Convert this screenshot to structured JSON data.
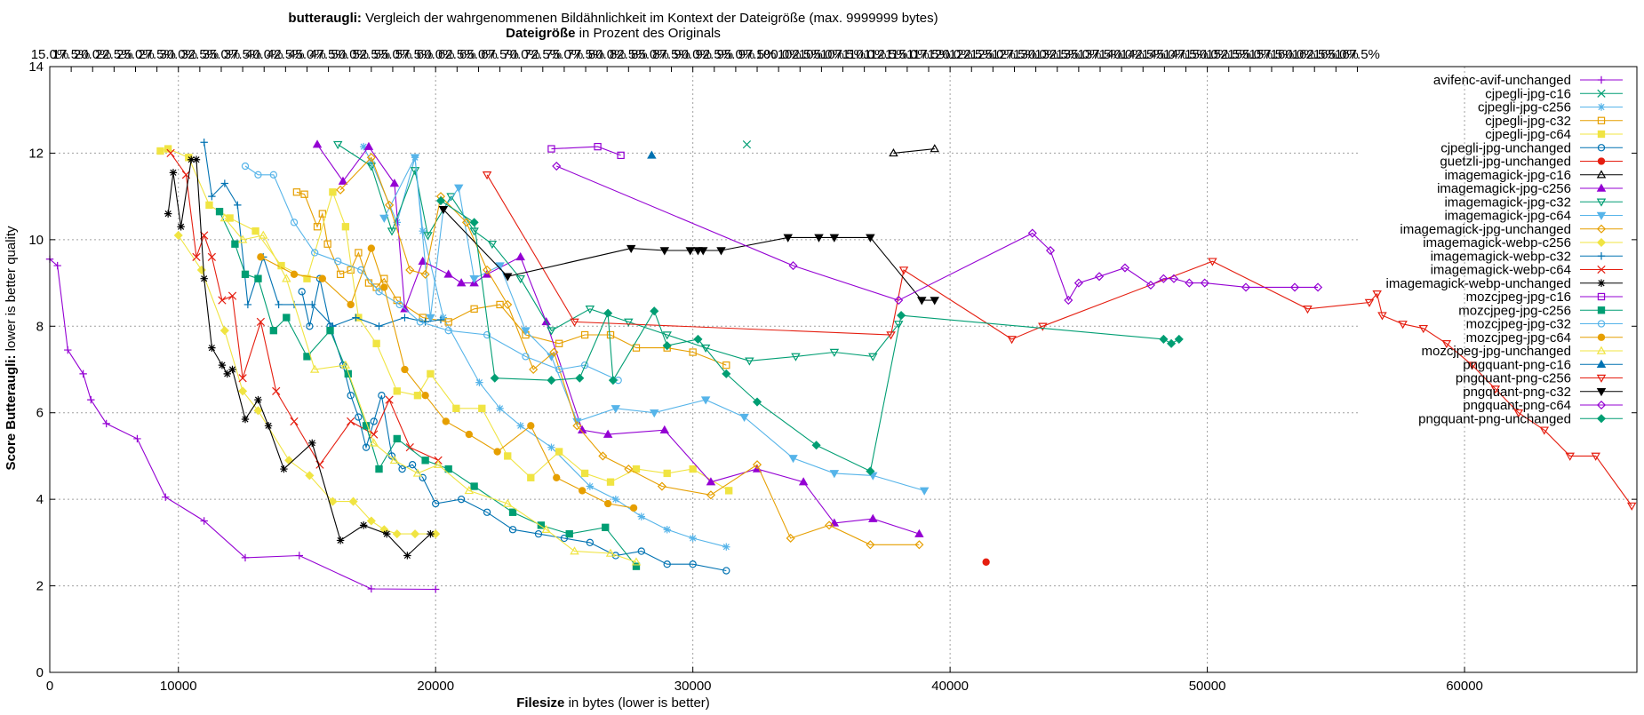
{
  "chart_data": {
    "type": "line",
    "title_bold": "butteraugli:",
    "title_rest": " Vergleich der wahrgenommenen Bildähnlichkeit im Kontext der Dateigröße (max. 9999999 bytes)",
    "x2title_bold": "Dateigröße",
    "x2title_rest": " in Prozent des Originals",
    "xlabel_bold": "Filesize",
    "xlabel_rest": " in bytes (lower is better)",
    "ylabel_bold": "Score Butteraugli:",
    "ylabel_rest": " lower is better quality",
    "xlim": [
      5000,
      66700
    ],
    "ylim": [
      0,
      14
    ],
    "xticks": [
      10000,
      20000,
      30000,
      40000,
      50000,
      60000
    ],
    "yticks": [
      0,
      2,
      4,
      6,
      8,
      10,
      12,
      14
    ],
    "x2_start": 15.0,
    "x2_step": 2.5,
    "x2_count": 62,
    "x2_per_unit": 0.003,
    "grid": true,
    "legend_position": "top-right",
    "series": [
      {
        "name": "avifenc-avif-unchanged",
        "color": "#9400d3",
        "marker": "plus",
        "x": [
          5000,
          5300,
          5700,
          6300,
          6600,
          7200,
          8400,
          9500,
          11000,
          12600,
          14700,
          17500,
          20000
        ],
        "y": [
          9.55,
          9.4,
          7.45,
          6.9,
          6.3,
          5.75,
          5.4,
          4.05,
          3.5,
          2.65,
          2.7,
          1.93,
          1.92
        ]
      },
      {
        "name": "cjpegli-jpg-c16",
        "color": "#009e73",
        "marker": "x",
        "x": [
          32100
        ],
        "y": [
          12.2
        ]
      },
      {
        "name": "cjpegli-jpg-c256",
        "color": "#56b4e9",
        "marker": "star",
        "x": [
          17200,
          17500,
          18500,
          19200,
          19500,
          20300,
          21700,
          22500,
          23300,
          24500,
          26000,
          27000,
          28000,
          29000,
          30000,
          31300
        ],
        "y": [
          12.15,
          11.8,
          10.4,
          11.9,
          10.2,
          8.2,
          6.7,
          6.1,
          5.7,
          5.2,
          4.3,
          4.0,
          3.6,
          3.3,
          3.1,
          2.9
        ]
      },
      {
        "name": "cjpegli-jpg-c32",
        "color": "#e69f00",
        "marker": "square",
        "x": [
          14600,
          14900,
          15400,
          15600,
          15800,
          16300,
          16700,
          17000,
          17400,
          17700,
          18000,
          18500,
          19500,
          20500,
          21500,
          22500,
          23500,
          24800,
          25800,
          26800,
          27800,
          29000,
          30000,
          31300
        ],
        "y": [
          11.1,
          11.05,
          10.3,
          10.6,
          9.9,
          9.2,
          9.3,
          9.7,
          9.0,
          8.9,
          9.1,
          8.6,
          8.2,
          8.1,
          8.4,
          8.5,
          7.8,
          7.6,
          7.8,
          7.8,
          7.5,
          7.5,
          7.4,
          7.1
        ]
      },
      {
        "name": "cjpegli-jpg-c64",
        "color": "#f0e442",
        "marker": "filled-square",
        "x": [
          9300,
          9600,
          10400,
          11200,
          12000,
          13000,
          14000,
          15000,
          16000,
          16500,
          17000,
          17700,
          18500,
          19300,
          19800,
          20800,
          21800,
          22800,
          23700,
          24800,
          25800,
          26800,
          27800,
          29000,
          30000,
          31400
        ],
        "y": [
          12.05,
          12.1,
          11.9,
          10.8,
          10.5,
          10.2,
          9.4,
          9.1,
          11.1,
          10.3,
          8.2,
          7.6,
          6.5,
          6.4,
          6.9,
          6.1,
          6.1,
          5.0,
          4.5,
          5.1,
          4.6,
          4.4,
          4.7,
          4.6,
          4.7,
          4.2
        ]
      },
      {
        "name": "cjpegli-jpg-unchanged",
        "color": "#0072b2",
        "marker": "circle",
        "x": [
          14800,
          15100,
          15500,
          15900,
          16400,
          16700,
          17000,
          17300,
          17600,
          17900,
          18300,
          18700,
          19100,
          19500,
          20000,
          21000,
          22000,
          23000,
          24000,
          25000,
          26000,
          27000,
          28000,
          29000,
          30000,
          31300
        ],
        "y": [
          8.8,
          8.0,
          9.1,
          8.0,
          7.1,
          6.4,
          5.9,
          5.2,
          5.8,
          6.4,
          5.0,
          4.7,
          4.8,
          4.5,
          3.9,
          4.0,
          3.7,
          3.3,
          3.2,
          3.1,
          3.0,
          2.7,
          2.8,
          2.5,
          2.5,
          2.35
        ]
      },
      {
        "name": "guetzli-jpg-unchanged",
        "color": "#e51e10",
        "marker": "filled-circle",
        "x": [
          41400
        ],
        "y": [
          2.55
        ]
      },
      {
        "name": "imagemagick-jpg-c16",
        "color": "#000000",
        "marker": "triangle",
        "x": [
          37800,
          39400
        ],
        "y": [
          12.0,
          12.1
        ]
      },
      {
        "name": "imagemagick-jpg-c256",
        "color": "#9400d3",
        "marker": "filled-triangle",
        "x": [
          15400,
          16400,
          17400,
          18400,
          18800,
          19500,
          20500,
          21000,
          21500,
          22000,
          23300,
          24300,
          25700,
          26700,
          28900,
          30700,
          32500,
          34300,
          35500,
          37000,
          38800
        ],
        "y": [
          12.2,
          11.35,
          12.15,
          11.3,
          8.4,
          9.5,
          9.2,
          9.0,
          9.0,
          9.2,
          9.6,
          8.1,
          5.6,
          5.5,
          5.6,
          4.4,
          4.7,
          4.4,
          3.45,
          3.55,
          3.2
        ]
      },
      {
        "name": "imagemagick-jpg-c32",
        "color": "#009e73",
        "marker": "triangle-down",
        "x": [
          16200,
          17500,
          18300,
          19200,
          19700,
          20600,
          21500,
          22200,
          23300,
          24500,
          26000,
          27500,
          29000,
          30500,
          32200,
          34000,
          35500,
          37000,
          38000
        ],
        "y": [
          12.2,
          11.7,
          10.2,
          11.6,
          10.1,
          11.0,
          10.2,
          9.9,
          9.1,
          7.9,
          8.4,
          8.1,
          7.8,
          7.5,
          7.2,
          7.3,
          7.4,
          7.3,
          8.05
        ]
      },
      {
        "name": "imagemagick-jpg-c64",
        "color": "#56b4e9",
        "marker": "filled-triangle-down",
        "x": [
          18000,
          19200,
          19800,
          20300,
          20900,
          21500,
          22500,
          23500,
          24500,
          25500,
          27000,
          28500,
          30500,
          32000,
          33900,
          35500,
          37000,
          39000
        ],
        "y": [
          10.5,
          11.9,
          8.2,
          10.7,
          11.2,
          9.1,
          9.4,
          7.9,
          7.3,
          5.8,
          6.1,
          6.0,
          6.3,
          5.9,
          4.95,
          4.6,
          4.55,
          4.2
        ]
      },
      {
        "name": "imagemagick-jpg-unchanged",
        "color": "#e69f00",
        "marker": "diamond",
        "x": [
          16300,
          17500,
          18200,
          19000,
          19600,
          20200,
          21200,
          22000,
          22800,
          23800,
          24600,
          25500,
          26500,
          27500,
          28800,
          30700,
          32500,
          33800,
          35300,
          36900,
          38800
        ],
        "y": [
          11.15,
          11.9,
          10.8,
          9.3,
          9.2,
          11.0,
          10.4,
          9.3,
          8.5,
          7.0,
          7.4,
          5.7,
          5.0,
          4.7,
          4.3,
          4.1,
          4.8,
          3.1,
          3.4,
          2.95,
          2.95
        ]
      },
      {
        "name": "imagemagick-webp-c256",
        "color": "#f0e442",
        "marker": "filled-diamond",
        "x": [
          10000,
          10900,
          11800,
          12500,
          13100,
          14300,
          15100,
          16000,
          16800,
          17500,
          18000,
          18500,
          19200,
          20000
        ],
        "y": [
          10.1,
          9.3,
          7.9,
          6.5,
          6.05,
          4.9,
          4.55,
          3.95,
          3.95,
          3.5,
          3.3,
          3.2,
          3.2,
          3.2
        ]
      },
      {
        "name": "imagemagick-webp-c32",
        "color": "#0072b2",
        "marker": "plus",
        "x": [
          11000,
          11300,
          11800,
          12300,
          12700,
          13300,
          13900,
          14500,
          15200,
          16000,
          16900,
          17800,
          18800,
          19600,
          20200
        ],
        "y": [
          12.25,
          11.0,
          11.3,
          10.8,
          8.5,
          9.6,
          8.5,
          8.5,
          8.5,
          8.0,
          8.2,
          8.0,
          8.2,
          8.1,
          8.15
        ]
      },
      {
        "name": "imagemagick-webp-c64",
        "color": "#e51e10",
        "marker": "x",
        "x": [
          9700,
          10300,
          10700,
          11000,
          11300,
          11700,
          12100,
          12500,
          13200,
          13800,
          14500,
          15500,
          16700,
          17600,
          18200,
          19000,
          20100
        ],
        "y": [
          12.0,
          11.5,
          9.6,
          10.1,
          9.6,
          8.6,
          8.7,
          6.8,
          8.1,
          6.5,
          5.8,
          4.8,
          5.8,
          5.5,
          6.3,
          5.2,
          4.9
        ]
      },
      {
        "name": "imagemagick-webp-unchanged",
        "color": "#000000",
        "marker": "star",
        "x": [
          9600,
          9800,
          10100,
          10500,
          10700,
          11000,
          11300,
          11700,
          11900,
          12100,
          12600,
          13100,
          13500,
          14100,
          15200,
          16300,
          17200,
          18100,
          18900,
          19800
        ],
        "y": [
          10.6,
          11.55,
          10.3,
          11.85,
          11.85,
          9.1,
          7.5,
          7.1,
          6.9,
          7.0,
          5.85,
          6.3,
          5.7,
          4.7,
          5.3,
          3.05,
          3.4,
          3.2,
          2.7,
          3.2
        ]
      },
      {
        "name": "mozcjpeg-jpg-c16",
        "color": "#9400d3",
        "marker": "square",
        "x": [
          24500,
          26300,
          27200
        ],
        "y": [
          12.1,
          12.15,
          11.95
        ]
      },
      {
        "name": "mozcjpeg-jpg-c256",
        "color": "#009e73",
        "marker": "filled-square",
        "x": [
          11600,
          12200,
          12600,
          13100,
          13700,
          14200,
          15000,
          15900,
          16600,
          17300,
          17800,
          18500,
          19600,
          20500,
          21500,
          23000,
          24100,
          25200,
          26600,
          27800
        ],
        "y": [
          10.65,
          9.9,
          9.2,
          9.1,
          7.9,
          8.2,
          7.3,
          7.9,
          6.9,
          5.7,
          4.7,
          5.4,
          4.9,
          4.7,
          4.3,
          3.7,
          3.4,
          3.2,
          3.35,
          2.45
        ]
      },
      {
        "name": "mozcjpeg-jpg-c32",
        "color": "#56b4e9",
        "marker": "circle",
        "x": [
          12600,
          13100,
          13700,
          14500,
          15300,
          16200,
          17100,
          17800,
          18600,
          19400,
          20500,
          22000,
          23500,
          24800,
          25800,
          27100
        ],
        "y": [
          11.7,
          11.5,
          11.5,
          10.4,
          9.7,
          9.5,
          9.3,
          8.8,
          8.5,
          8.1,
          7.9,
          7.8,
          7.3,
          7.0,
          7.1,
          6.75
        ]
      },
      {
        "name": "mozcjpeg-jpg-c64",
        "color": "#e69f00",
        "marker": "filled-circle",
        "x": [
          13200,
          14500,
          15600,
          16700,
          17500,
          18000,
          18800,
          19600,
          20400,
          21300,
          22400,
          23700,
          24700,
          25700,
          26700,
          27700
        ],
        "y": [
          9.6,
          9.2,
          9.1,
          8.5,
          9.8,
          8.9,
          7.0,
          6.4,
          5.8,
          5.5,
          5.1,
          5.7,
          4.5,
          4.2,
          3.9,
          3.8
        ]
      },
      {
        "name": "mozcjpeg-jpg-unchanged",
        "color": "#f0e442",
        "marker": "triangle",
        "x": [
          11800,
          12500,
          13300,
          14200,
          15300,
          16500,
          17600,
          18400,
          19300,
          20100,
          21300,
          22800,
          24300,
          25400,
          26800,
          27800
        ],
        "y": [
          10.5,
          10.0,
          10.1,
          9.1,
          7.0,
          7.1,
          5.3,
          4.9,
          4.6,
          4.8,
          4.2,
          3.9,
          3.3,
          2.8,
          2.75,
          2.55
        ]
      },
      {
        "name": "pngquant-png-c16",
        "color": "#0072b2",
        "marker": "filled-triangle",
        "x": [
          28400
        ],
        "y": [
          11.95
        ]
      },
      {
        "name": "pngquant-png-c256",
        "color": "#e51e10",
        "marker": "triangle-down",
        "x": [
          22000,
          25400,
          37700,
          38200,
          42400,
          43600,
          50200,
          53900,
          56300,
          56600,
          56800,
          57600,
          58400,
          59300,
          60300,
          61200,
          62100,
          63100,
          64100,
          65100,
          66500
        ],
        "y": [
          11.5,
          8.1,
          7.8,
          9.3,
          7.7,
          8.0,
          9.5,
          8.4,
          8.55,
          8.75,
          8.25,
          8.05,
          7.95,
          7.6,
          7.1,
          6.55,
          6.0,
          5.6,
          5.0,
          5.0,
          3.85
        ]
      },
      {
        "name": "pngquant-png-c32",
        "color": "#000000",
        "marker": "filled-triangle-down",
        "x": [
          20300,
          22800,
          27600,
          28900,
          29900,
          30200,
          30400,
          31100,
          33700,
          34900,
          35500,
          36900,
          38900,
          39400
        ],
        "y": [
          10.7,
          9.15,
          9.8,
          9.75,
          9.75,
          9.75,
          9.75,
          9.75,
          10.05,
          10.05,
          10.05,
          10.05,
          8.6,
          8.6
        ]
      },
      {
        "name": "pngquant-png-c64",
        "color": "#9400d3",
        "marker": "diamond",
        "x": [
          24700,
          33900,
          38000,
          43200,
          43900,
          44600,
          45000,
          45800,
          46800,
          47800,
          48300,
          48700,
          49300,
          49900,
          51500,
          53400,
          54300
        ],
        "y": [
          11.7,
          9.4,
          8.6,
          10.15,
          9.75,
          8.6,
          9.0,
          9.15,
          9.35,
          8.95,
          9.1,
          9.1,
          9.0,
          9.0,
          8.9,
          8.9,
          8.9
        ]
      },
      {
        "name": "pngquant-png-unchanged",
        "color": "#009e73",
        "marker": "filled-diamond",
        "x": [
          20200,
          21500,
          22300,
          24500,
          25600,
          26700,
          26900,
          28500,
          29000,
          30200,
          31300,
          32500,
          34800,
          36900,
          38100,
          48300,
          48600,
          48900
        ],
        "y": [
          10.9,
          10.4,
          6.8,
          6.75,
          6.8,
          8.3,
          6.75,
          8.35,
          7.55,
          7.7,
          6.9,
          6.25,
          5.25,
          4.65,
          8.25,
          7.7,
          7.6,
          7.7
        ]
      }
    ]
  }
}
